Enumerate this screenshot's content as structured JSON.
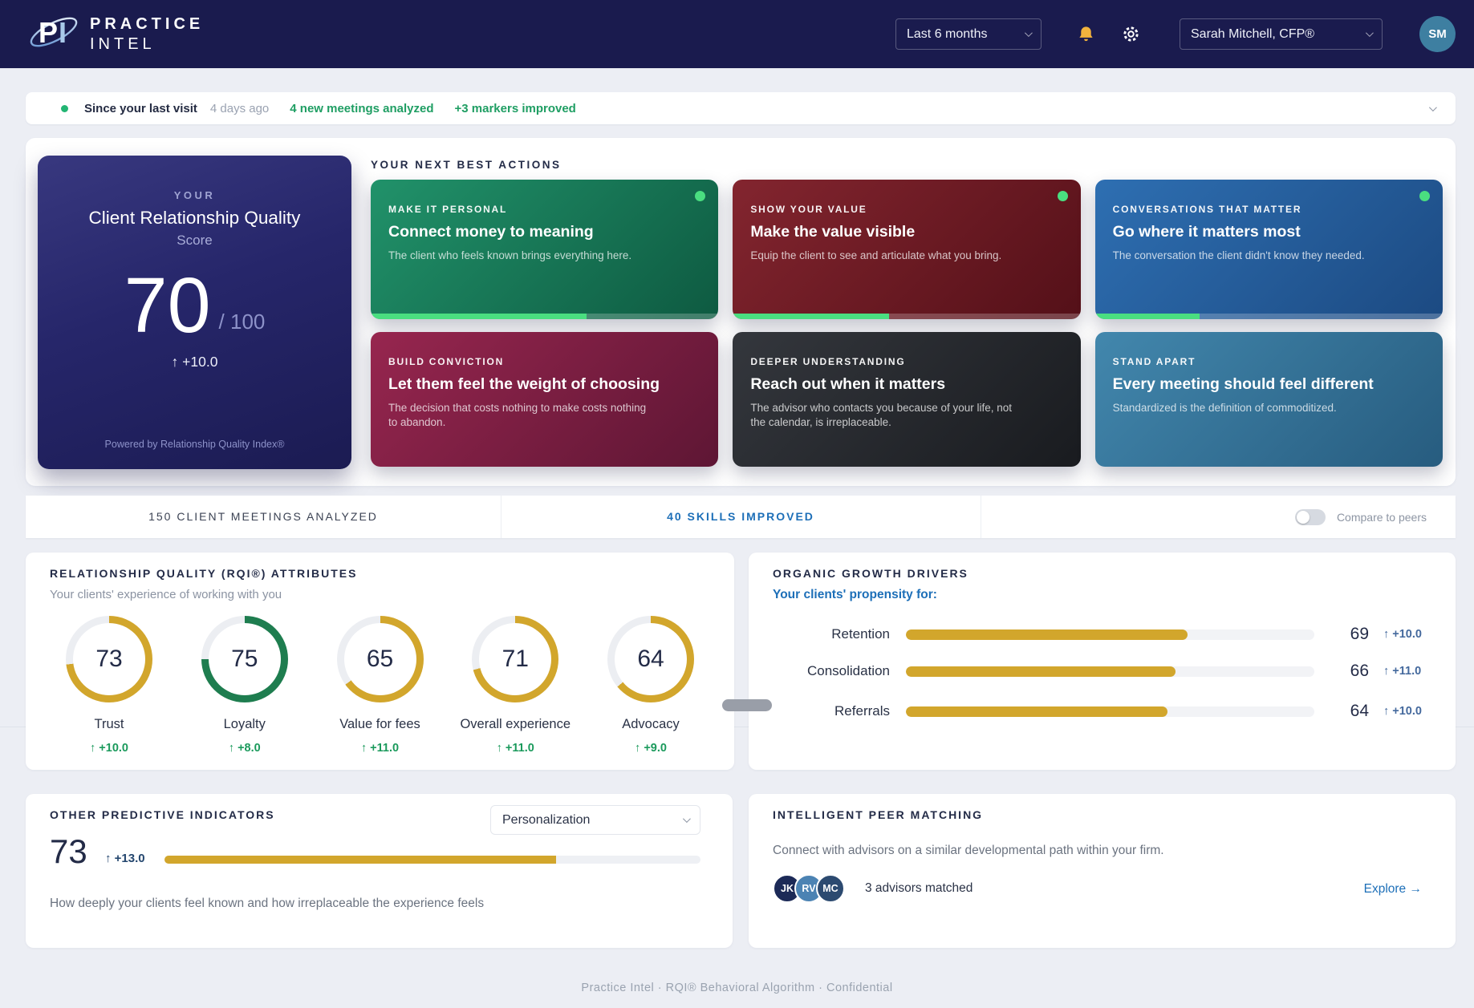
{
  "header": {
    "logo": {
      "mark": "PI",
      "line1": "PRACTICE",
      "line2": "INTEL"
    },
    "period": {
      "value": "Last 6 months"
    },
    "user": {
      "name": "Sarah Mitchell, CFP®"
    },
    "avatar": "SM"
  },
  "status": {
    "label": "Since your last visit",
    "ago": "4 days ago",
    "meetings": "4 new meetings analyzed",
    "markers": "+3 markers improved"
  },
  "score_card": {
    "kicker": "YOUR",
    "title": "Client Relationship Quality",
    "subtitle": "Score",
    "value": "70",
    "max": "/ 100",
    "delta": "↑ +10.0",
    "footnote": "Powered by Relationship Quality Index®"
  },
  "actions": {
    "heading": "YOUR NEXT BEST ACTIONS",
    "cards": [
      {
        "category": "MAKE IT PERSONAL",
        "title": "Connect money to meaning",
        "description": "The client who feels known brings everything here.",
        "progress": 62,
        "dot": true,
        "bg_from": "#21926a",
        "bg_to": "#0e5a41"
      },
      {
        "category": "SHOW YOUR VALUE",
        "title": "Make the value visible",
        "description": "Equip the client to see and articulate what you bring.",
        "progress": 45,
        "dot": true,
        "bg_from": "#83252f",
        "bg_to": "#541018"
      },
      {
        "category": "CONVERSATIONS THAT MATTER",
        "title": "Go where it matters most",
        "description": "The conversation the client didn't know they needed.",
        "progress": 30,
        "dot": true,
        "bg_from": "#2e6fb2",
        "bg_to": "#1c4a82"
      },
      {
        "category": "BUILD CONVICTION",
        "title": "Let them feel the weight of choosing",
        "description": "The decision that costs nothing to make costs nothing to abandon.",
        "progress": null,
        "dot": false,
        "bg_from": "#97264f",
        "bg_to": "#5e1634"
      },
      {
        "category": "DEEPER UNDERSTANDING",
        "title": "Reach out when it matters",
        "description": "The advisor who contacts you because of your life, not the calendar, is irreplaceable.",
        "progress": null,
        "dot": false,
        "bg_from": "#34373d",
        "bg_to": "#191b1f"
      },
      {
        "category": "STAND APART",
        "title": "Every meeting should feel different",
        "description": "Standardized is the definition of commoditized.",
        "progress": null,
        "dot": false,
        "bg_from": "#4287ad",
        "bg_to": "#275c7f"
      }
    ]
  },
  "stats": {
    "meetings": "150 CLIENT MEETINGS ANALYZED",
    "skills": "40 SKILLS IMPROVED",
    "compare": "Compare to peers"
  },
  "rqi": {
    "title": "RELATIONSHIP QUALITY (RQI®) ATTRIBUTES",
    "subtitle": "Your clients' experience of working with you",
    "gauges": [
      {
        "value": 73,
        "label": "Trust",
        "delta": "↑ +10.0",
        "color": "#d2a62c"
      },
      {
        "value": 75,
        "label": "Loyalty",
        "delta": "↑ +8.0",
        "color": "#1e7d4f"
      },
      {
        "value": 65,
        "label": "Value for fees",
        "delta": "↑ +11.0",
        "color": "#d2a62c"
      },
      {
        "value": 71,
        "label": "Overall experience",
        "delta": "↑ +11.0",
        "color": "#d2a62c"
      },
      {
        "value": 64,
        "label": "Advocacy",
        "delta": "↑ +9.0",
        "color": "#d2a62c"
      }
    ]
  },
  "growth": {
    "title": "ORGANIC GROWTH DRIVERS",
    "subtitle": "Your clients' propensity for:",
    "rows": [
      {
        "label": "Retention",
        "value": 69,
        "delta": "↑ +10.0"
      },
      {
        "label": "Consolidation",
        "value": 66,
        "delta": "↑ +11.0"
      },
      {
        "label": "Referrals",
        "value": 64,
        "delta": "↑ +10.0"
      }
    ]
  },
  "indicators": {
    "title": "OTHER PREDICTIVE INDICATORS",
    "dropdown": "Personalization",
    "value": "73",
    "delta": "↑ +13.0",
    "percent": 73,
    "description": "How deeply your clients feel known and how irreplaceable the experience feels"
  },
  "peers": {
    "title": "INTELLIGENT PEER MATCHING",
    "description": "Connect with advisors on a similar developmental path within your firm.",
    "avatars": [
      {
        "initials": "JK",
        "color": "#1c2a57"
      },
      {
        "initials": "RV",
        "color": "#4c83b3"
      },
      {
        "initials": "MC",
        "color": "#2c4a70"
      }
    ],
    "matched": "3 advisors matched",
    "explore": "Explore →"
  },
  "footer": {
    "text": "Practice Intel · RQI® Behavioral Algorithm · Confidential"
  },
  "colors": {
    "header_navy": "#1a1b4e",
    "accent_gold": "#d2a62c",
    "ring_green": "#1e7d4f",
    "delta_green": "#1b9a5c",
    "delta_blue": "#44699d",
    "link_blue": "#1d6fb8",
    "progress_green": "#4ade80",
    "status_dot_green": "#22b573"
  }
}
